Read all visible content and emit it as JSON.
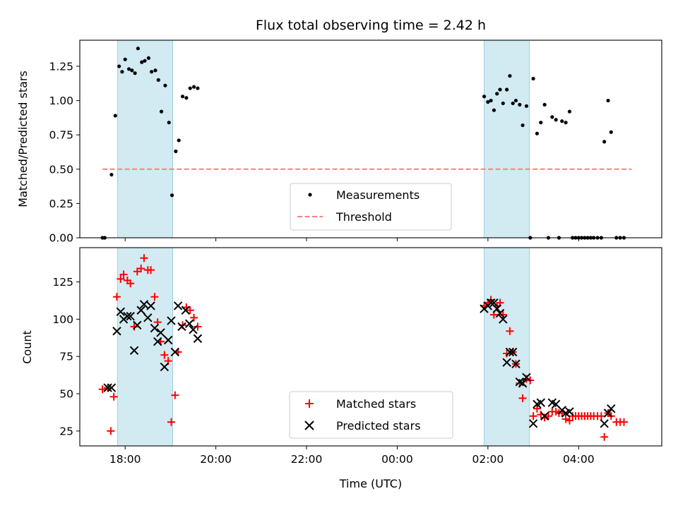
{
  "chart_data": [
    {
      "type": "scatter",
      "title": "Flux total observing time = 2.42 h",
      "xlabel": "",
      "ylabel": "Matched/Predicted stars",
      "xlim": [
        "17:00",
        "05:50"
      ],
      "ylim": [
        0,
        1.44
      ],
      "yticks": [
        "0.00",
        "0.25",
        "0.50",
        "0.75",
        "1.00",
        "1.25"
      ],
      "shaded_regions": [
        [
          "17:50",
          "19:03"
        ],
        [
          "01:55",
          "02:55"
        ]
      ],
      "legend": {
        "position": "bottom-center",
        "entries": [
          "Measurements",
          "Threshold"
        ]
      },
      "threshold": {
        "name": "Threshold",
        "y": 0.5,
        "x": [
          "17:30",
          "05:10"
        ],
        "color": "#ff7f7f"
      },
      "series": [
        {
          "name": "Measurements",
          "color": "#000000",
          "points": [
            [
              "17:30",
              0.0
            ],
            [
              "17:33",
              0.0
            ],
            [
              "17:42",
              0.46
            ],
            [
              "17:47",
              0.89
            ],
            [
              "17:52",
              1.25
            ],
            [
              "17:56",
              1.21
            ],
            [
              "18:00",
              1.3
            ],
            [
              "18:05",
              1.23
            ],
            [
              "18:09",
              1.22
            ],
            [
              "18:13",
              1.2
            ],
            [
              "18:17",
              1.38
            ],
            [
              "18:22",
              1.28
            ],
            [
              "18:26",
              1.29
            ],
            [
              "18:31",
              1.31
            ],
            [
              "18:35",
              1.21
            ],
            [
              "18:40",
              1.22
            ],
            [
              "18:44",
              1.15
            ],
            [
              "18:48",
              0.92
            ],
            [
              "18:53",
              1.11
            ],
            [
              "18:58",
              0.84
            ],
            [
              "19:02",
              0.31
            ],
            [
              "19:07",
              0.63
            ],
            [
              "19:11",
              0.71
            ],
            [
              "19:16",
              1.03
            ],
            [
              "19:21",
              1.02
            ],
            [
              "19:26",
              1.09
            ],
            [
              "19:31",
              1.1
            ],
            [
              "19:36",
              1.09
            ],
            [
              "01:55",
              1.03
            ],
            [
              "02:00",
              0.99
            ],
            [
              "02:04",
              1.0
            ],
            [
              "02:08",
              0.93
            ],
            [
              "02:12",
              1.05
            ],
            [
              "02:16",
              1.08
            ],
            [
              "02:20",
              0.98
            ],
            [
              "02:25",
              1.08
            ],
            [
              "02:29",
              1.18
            ],
            [
              "02:33",
              0.98
            ],
            [
              "02:37",
              1.0
            ],
            [
              "02:42",
              0.97
            ],
            [
              "02:46",
              0.82
            ],
            [
              "02:51",
              0.96
            ],
            [
              "02:56",
              0.0
            ],
            [
              "03:00",
              1.16
            ],
            [
              "03:05",
              0.76
            ],
            [
              "03:10",
              0.84
            ],
            [
              "03:15",
              0.97
            ],
            [
              "03:20",
              0.0
            ],
            [
              "03:25",
              0.88
            ],
            [
              "03:30",
              0.86
            ],
            [
              "03:34",
              0.0
            ],
            [
              "03:38",
              0.85
            ],
            [
              "03:43",
              0.84
            ],
            [
              "03:48",
              0.92
            ],
            [
              "03:52",
              0.0
            ],
            [
              "03:56",
              0.0
            ],
            [
              "04:00",
              0.0
            ],
            [
              "04:04",
              0.0
            ],
            [
              "04:08",
              0.0
            ],
            [
              "04:12",
              0.0
            ],
            [
              "04:16",
              0.0
            ],
            [
              "04:20",
              0.0
            ],
            [
              "04:25",
              0.0
            ],
            [
              "04:30",
              0.0
            ],
            [
              "04:34",
              0.7
            ],
            [
              "04:39",
              1.0
            ],
            [
              "04:43",
              0.77
            ],
            [
              "04:50",
              0.0
            ],
            [
              "04:55",
              0.0
            ],
            [
              "05:00",
              0.0
            ]
          ]
        }
      ]
    },
    {
      "type": "scatter",
      "title": "",
      "xlabel": "Time (UTC)",
      "ylabel": "Count",
      "xlim": [
        "17:00",
        "05:50"
      ],
      "ylim": [
        15,
        148
      ],
      "xticks": [
        "18:00",
        "20:00",
        "22:00",
        "00:00",
        "02:00",
        "04:00"
      ],
      "yticks": [
        "25",
        "50",
        "75",
        "100",
        "125"
      ],
      "shaded_regions": [
        [
          "17:50",
          "19:03"
        ],
        [
          "01:55",
          "02:55"
        ]
      ],
      "legend": {
        "position": "bottom-center",
        "entries": [
          "Matched stars",
          "Predicted stars"
        ]
      },
      "series": [
        {
          "name": "Matched stars",
          "marker": "plus",
          "color": "#ff0000",
          "points": [
            [
              "17:30",
              53
            ],
            [
              "17:37",
              54
            ],
            [
              "17:41",
              25
            ],
            [
              "17:45",
              48
            ],
            [
              "17:49",
              115
            ],
            [
              "17:54",
              127
            ],
            [
              "17:58",
              130
            ],
            [
              "18:03",
              126
            ],
            [
              "18:07",
              124
            ],
            [
              "18:12",
              95
            ],
            [
              "18:16",
              132
            ],
            [
              "18:21",
              134
            ],
            [
              "18:25",
              141
            ],
            [
              "18:30",
              133
            ],
            [
              "18:34",
              133
            ],
            [
              "18:39",
              115
            ],
            [
              "18:43",
              98
            ],
            [
              "18:47",
              85
            ],
            [
              "18:52",
              76
            ],
            [
              "18:57",
              72
            ],
            [
              "19:01",
              31
            ],
            [
              "19:06",
              49
            ],
            [
              "19:10",
              78
            ],
            [
              "19:16",
              96
            ],
            [
              "19:21",
              108
            ],
            [
              "19:26",
              106
            ],
            [
              "19:31",
              101
            ],
            [
              "19:36",
              95
            ],
            [
              "01:55",
              109
            ],
            [
              "02:00",
              111
            ],
            [
              "02:04",
              113
            ],
            [
              "02:08",
              103
            ],
            [
              "02:12",
              109
            ],
            [
              "02:16",
              111
            ],
            [
              "02:20",
              103
            ],
            [
              "02:25",
              77
            ],
            [
              "02:29",
              92
            ],
            [
              "02:33",
              78
            ],
            [
              "02:37",
              70
            ],
            [
              "02:42",
              57
            ],
            [
              "02:46",
              47
            ],
            [
              "02:51",
              60
            ],
            [
              "02:56",
              59
            ],
            [
              "03:00",
              35
            ],
            [
              "03:05",
              40
            ],
            [
              "03:10",
              36
            ],
            [
              "03:15",
              34
            ],
            [
              "03:20",
              35
            ],
            [
              "03:25",
              38
            ],
            [
              "03:30",
              38
            ],
            [
              "03:34",
              37
            ],
            [
              "03:38",
              37
            ],
            [
              "03:43",
              33
            ],
            [
              "03:48",
              32
            ],
            [
              "03:52",
              35
            ],
            [
              "03:56",
              35
            ],
            [
              "04:00",
              35
            ],
            [
              "04:04",
              35
            ],
            [
              "04:08",
              35
            ],
            [
              "04:12",
              35
            ],
            [
              "04:16",
              35
            ],
            [
              "04:20",
              35
            ],
            [
              "04:25",
              35
            ],
            [
              "04:30",
              35
            ],
            [
              "04:34",
              21
            ],
            [
              "04:39",
              37
            ],
            [
              "04:43",
              35
            ],
            [
              "04:50",
              31
            ],
            [
              "04:55",
              31
            ],
            [
              "05:00",
              31
            ]
          ]
        },
        {
          "name": "Predicted stars",
          "marker": "x",
          "color": "#000000",
          "points": [
            [
              "17:37",
              54
            ],
            [
              "17:42",
              54
            ],
            [
              "17:49",
              92
            ],
            [
              "17:54",
              105
            ],
            [
              "17:58",
              100
            ],
            [
              "18:03",
              102
            ],
            [
              "18:07",
              102
            ],
            [
              "18:12",
              79
            ],
            [
              "18:16",
              96
            ],
            [
              "18:21",
              106
            ],
            [
              "18:25",
              110
            ],
            [
              "18:30",
              101
            ],
            [
              "18:34",
              109
            ],
            [
              "18:39",
              94
            ],
            [
              "18:43",
              85
            ],
            [
              "18:47",
              91
            ],
            [
              "18:52",
              68
            ],
            [
              "18:57",
              86
            ],
            [
              "19:01",
              99
            ],
            [
              "19:06",
              78
            ],
            [
              "19:10",
              109
            ],
            [
              "19:15",
              95
            ],
            [
              "19:20",
              106
            ],
            [
              "19:25",
              97
            ],
            [
              "19:30",
              93
            ],
            [
              "19:36",
              87
            ],
            [
              "01:55",
              107
            ],
            [
              "02:00",
              109
            ],
            [
              "02:04",
              111
            ],
            [
              "02:08",
              111
            ],
            [
              "02:12",
              107
            ],
            [
              "02:16",
              104
            ],
            [
              "02:20",
              100
            ],
            [
              "02:25",
              71
            ],
            [
              "02:29",
              78
            ],
            [
              "02:33",
              78
            ],
            [
              "02:37",
              70
            ],
            [
              "02:42",
              58
            ],
            [
              "02:46",
              57
            ],
            [
              "02:51",
              61
            ],
            [
              "03:00",
              30
            ],
            [
              "03:05",
              43
            ],
            [
              "03:10",
              44
            ],
            [
              "03:15",
              35
            ],
            [
              "03:25",
              44
            ],
            [
              "03:30",
              43
            ],
            [
              "03:38",
              39
            ],
            [
              "03:43",
              37
            ],
            [
              "03:48",
              38
            ],
            [
              "04:34",
              30
            ],
            [
              "04:39",
              37
            ],
            [
              "04:43",
              40
            ]
          ]
        }
      ]
    }
  ]
}
